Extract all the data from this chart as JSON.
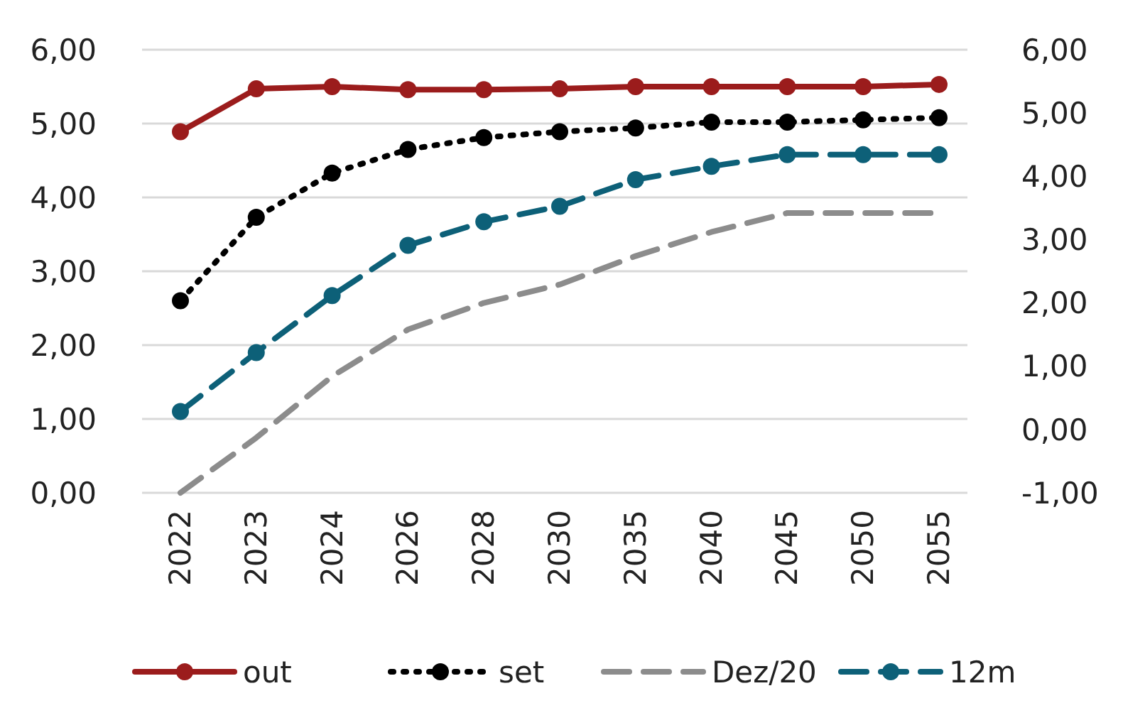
{
  "chart_data": {
    "type": "line",
    "categories": [
      "2022",
      "2023",
      "2024",
      "2026",
      "2028",
      "2030",
      "2035",
      "2040",
      "2045",
      "2050",
      "2055"
    ],
    "series": [
      {
        "name": "out",
        "color": "#9b1c1c",
        "line_style": "solid",
        "marker": "circle",
        "values": [
          4.89,
          5.47,
          5.5,
          5.46,
          5.46,
          5.47,
          5.5,
          5.5,
          5.5,
          5.5,
          5.53
        ]
      },
      {
        "name": "set",
        "color": "#000000",
        "line_style": "dotted",
        "marker": "circle",
        "values": [
          2.6,
          3.73,
          4.33,
          4.65,
          4.81,
          4.89,
          4.94,
          5.02,
          5.02,
          5.05,
          5.08
        ]
      },
      {
        "name": "Dez/20",
        "color": "#8c8c8c",
        "line_style": "dashed",
        "marker": "none",
        "axis": "y2",
        "values": [
          -1.0,
          -0.13,
          0.84,
          1.58,
          2.0,
          2.29,
          2.74,
          3.12,
          3.42,
          3.42,
          3.42
        ]
      },
      {
        "name": "12m",
        "color": "#0d6078",
        "line_style": "dashed",
        "marker": "circle",
        "values": [
          1.1,
          1.9,
          2.67,
          3.35,
          3.67,
          3.88,
          4.24,
          4.42,
          4.58,
          4.58,
          4.58
        ]
      }
    ],
    "ylim": [
      0,
      6
    ],
    "yticks": [
      {
        "value": 0,
        "label": "0,00"
      },
      {
        "value": 1,
        "label": "1,00"
      },
      {
        "value": 2,
        "label": "2,00"
      },
      {
        "value": 3,
        "label": "3,00"
      },
      {
        "value": 4,
        "label": "4,00"
      },
      {
        "value": 5,
        "label": "5,00"
      },
      {
        "value": 6,
        "label": "6,00"
      }
    ],
    "y2lim": [
      -1,
      6
    ],
    "y2ticks": [
      {
        "value": -1,
        "label": "-1,00"
      },
      {
        "value": 0,
        "label": "0,00"
      },
      {
        "value": 1,
        "label": "1,00"
      },
      {
        "value": 2,
        "label": "2,00"
      },
      {
        "value": 3,
        "label": "3,00"
      },
      {
        "value": 4,
        "label": "4,00"
      },
      {
        "value": 5,
        "label": "5,00"
      },
      {
        "value": 6,
        "label": "6,00"
      }
    ],
    "grid": "y",
    "legend": "bottom"
  }
}
